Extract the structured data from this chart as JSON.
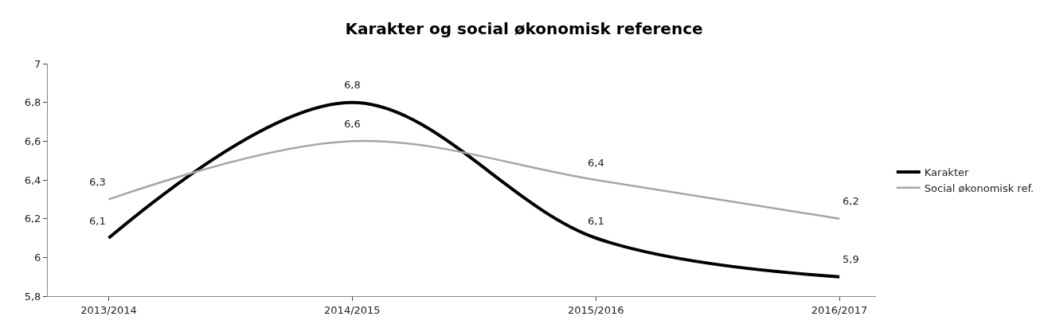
{
  "chart_data": {
    "type": "line",
    "title": "Karakter og social økonomisk reference",
    "categories": [
      "2013/2014",
      "2014/2015",
      "2015/2016",
      "2016/2017"
    ],
    "series": [
      {
        "name": "Karakter",
        "color": "#000000",
        "values": [
          6.1,
          6.8,
          6.1,
          5.9
        ],
        "value_labels": [
          "6,1",
          "6,8",
          "6,1",
          "5,9"
        ]
      },
      {
        "name": "Social økonomisk ref.",
        "color": "#a6a6a6",
        "values": [
          6.3,
          6.6,
          6.4,
          6.2
        ],
        "value_labels": [
          "6,3",
          "6,6",
          "6,4",
          "6,2"
        ]
      }
    ],
    "ylim": [
      5.8,
      7
    ],
    "yticks": [
      {
        "value": 5.8,
        "label": "5,8"
      },
      6,
      {
        "value": 6.2,
        "label": "6,2"
      },
      {
        "value": 6.4,
        "label": "6,4"
      },
      {
        "value": 6.6,
        "label": "6,6"
      },
      {
        "value": 6.8,
        "label": "6,8"
      },
      7
    ],
    "legend": "right",
    "marker": "none",
    "line_style": "solid"
  }
}
